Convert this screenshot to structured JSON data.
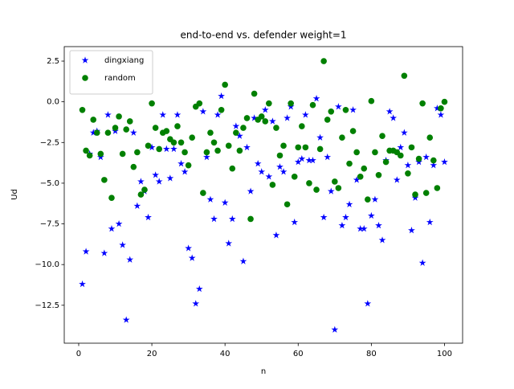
{
  "chart_data": {
    "type": "scatter",
    "title": "end-to-end vs. defender weight=1",
    "xlabel": "n",
    "ylabel": "Ud",
    "x": [
      1,
      2,
      3,
      4,
      5,
      6,
      7,
      8,
      9,
      10,
      11,
      12,
      13,
      14,
      15,
      16,
      17,
      18,
      19,
      20,
      21,
      22,
      23,
      24,
      25,
      26,
      27,
      28,
      29,
      30,
      31,
      32,
      33,
      34,
      35,
      36,
      37,
      38,
      39,
      40,
      41,
      42,
      43,
      44,
      45,
      46,
      47,
      48,
      49,
      50,
      51,
      52,
      53,
      54,
      55,
      56,
      57,
      58,
      59,
      60,
      61,
      62,
      63,
      64,
      65,
      66,
      67,
      68,
      69,
      70,
      71,
      72,
      73,
      74,
      75,
      76,
      77,
      78,
      79,
      80,
      81,
      82,
      83,
      84,
      85,
      86,
      87,
      88,
      89,
      90,
      91,
      92,
      93,
      94,
      95,
      96,
      97,
      98,
      99,
      100
    ],
    "series": [
      {
        "name": "dingxiang",
        "color": "#0000ff",
        "marker": "star",
        "values": [
          -11.2,
          -9.2,
          -3.2,
          -1.9,
          -1.8,
          -3.4,
          -9.3,
          -0.8,
          -7.8,
          -1.8,
          -7.5,
          -8.8,
          -13.4,
          -9.7,
          -1.9,
          -6.4,
          -4.9,
          -5.5,
          -7.1,
          -2.8,
          -4.5,
          -4.9,
          -0.8,
          -2.9,
          -4.7,
          -2.9,
          -0.8,
          -3.8,
          -4.3,
          -9.0,
          -9.6,
          -12.4,
          -11.5,
          -0.6,
          -3.4,
          -6.0,
          -7.2,
          -0.8,
          0.35,
          -6.2,
          -8.7,
          -7.2,
          -1.5,
          -2.1,
          -9.8,
          -2.8,
          -5.5,
          -1.0,
          -3.8,
          -4.3,
          -0.5,
          -4.6,
          -1.2,
          -8.2,
          -4.0,
          -4.3,
          -1.0,
          -0.3,
          -7.4,
          -3.7,
          -3.5,
          -0.8,
          -3.6,
          -3.6,
          0.2,
          -2.2,
          -7.1,
          -3.4,
          -5.5,
          -14.0,
          -0.3,
          -7.6,
          -7.1,
          -6.3,
          -0.5,
          -4.8,
          -7.8,
          -7.8,
          -12.4,
          -7.0,
          -6.0,
          -7.6,
          -8.5,
          -3.6,
          -0.6,
          -1.0,
          -4.8,
          -2.8,
          -1.9,
          -3.9,
          -7.9,
          -5.9,
          -3.7,
          -9.9,
          -3.4,
          -7.4,
          -3.9,
          -0.4,
          -0.8,
          -3.7
        ]
      },
      {
        "name": "random",
        "color": "#008000",
        "marker": "circle",
        "values": [
          -0.5,
          -3.0,
          -3.3,
          -1.1,
          -1.9,
          -3.2,
          -4.8,
          -1.9,
          -5.9,
          -1.6,
          -0.9,
          -3.2,
          -1.7,
          -1.2,
          -4.0,
          -3.1,
          -5.7,
          -5.4,
          -2.7,
          -0.1,
          -1.6,
          -2.9,
          -1.9,
          -1.8,
          -2.3,
          -2.5,
          -1.5,
          -2.5,
          -3.1,
          -3.9,
          -2.2,
          -0.3,
          -0.1,
          -5.6,
          -3.1,
          -1.9,
          -2.5,
          -3.0,
          -0.5,
          1.05,
          -2.7,
          -4.1,
          -1.9,
          -3.0,
          -1.6,
          -1.0,
          -7.2,
          0.5,
          -1.1,
          -0.9,
          -1.2,
          -0.1,
          -5.1,
          -1.6,
          -3.3,
          -2.7,
          -6.3,
          -0.1,
          -4.6,
          -2.8,
          -1.5,
          -2.8,
          -5.0,
          -0.2,
          -5.4,
          -2.9,
          2.5,
          -1.1,
          -0.6,
          -4.9,
          -5.3,
          -2.2,
          -0.5,
          -3.8,
          -1.8,
          -3.1,
          -4.6,
          -4.1,
          -6.0,
          0.05,
          -3.1,
          -4.5,
          -2.1,
          -3.7,
          -3.0,
          -3.0,
          -3.1,
          -3.3,
          1.6,
          -4.4,
          -2.8,
          -5.7,
          -3.5,
          -0.1,
          -5.6,
          -2.2,
          -3.6,
          -5.3,
          -0.4,
          0.0
        ]
      }
    ],
    "xlim": [
      -3.95,
      104.95
    ],
    "ylim": [
      -14.83,
      3.39
    ],
    "xticks": [
      0,
      20,
      40,
      60,
      80,
      100
    ],
    "yticks": [
      2.5,
      {
        "value": 0,
        "label": "0.0"
      },
      {
        "value": -2.5,
        "label": "−2.5"
      },
      {
        "value": -5,
        "label": "−5.0"
      },
      {
        "value": -7.5,
        "label": "−7.5"
      },
      {
        "value": -10,
        "label": "−10.0"
      },
      {
        "value": -12.5,
        "label": "−12.5"
      }
    ],
    "legend": "upper left",
    "grid": false
  }
}
